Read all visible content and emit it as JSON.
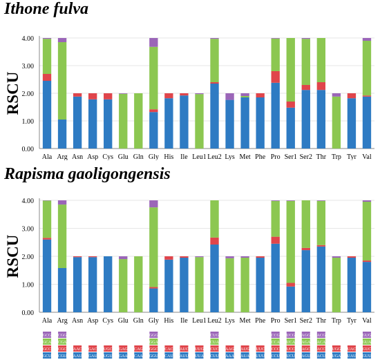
{
  "panel_titles": [
    "Ithone fulva",
    "Rapisma gaoligongensis"
  ],
  "colors": {
    "c1": "#2E7BC3",
    "c2": "#E0454B",
    "c3": "#8CC751",
    "c4": "#9B66B8",
    "axis": "#888888",
    "grid": "#e6e6e6"
  },
  "chart_data": [
    {
      "type": "bar",
      "stacked": true,
      "title": "Ithone fulva",
      "ylabel": "RSCU",
      "ylim": [
        0,
        4
      ],
      "yticks": [
        "0.00",
        "1.00",
        "2.00",
        "3.00",
        "4.00"
      ],
      "categories": [
        "Ala",
        "Arg",
        "Asn",
        "Asp",
        "Cys",
        "Glu",
        "Gln",
        "Gly",
        "His",
        "Ile",
        "Leu1",
        "Leu2",
        "Lys",
        "Met",
        "Phe",
        "Pro",
        "Ser1",
        "Ser2",
        "Thr",
        "Trp",
        "Tyr",
        "Val"
      ],
      "series": [
        {
          "values": [
            2.45,
            1.05,
            1.88,
            1.78,
            1.78,
            0.0,
            0.0,
            1.32,
            1.82,
            1.92,
            0.0,
            2.35,
            1.76,
            1.85,
            1.85,
            2.38,
            1.48,
            2.12,
            2.12,
            0.0,
            1.82,
            1.88
          ]
        },
        {
          "values": [
            0.25,
            0.0,
            0.12,
            0.22,
            0.22,
            0.0,
            0.0,
            0.1,
            0.18,
            0.08,
            0.0,
            0.05,
            0.0,
            0.0,
            0.15,
            0.42,
            0.22,
            0.18,
            0.28,
            0.0,
            0.18,
            0.04
          ]
        },
        {
          "values": [
            1.27,
            2.8,
            0.0,
            0.0,
            0.0,
            1.98,
            2.0,
            2.26,
            0.0,
            0.0,
            1.97,
            1.57,
            0.0,
            0.05,
            0.0,
            1.18,
            2.3,
            1.67,
            1.6,
            1.88,
            0.0,
            1.98
          ]
        },
        {
          "values": [
            0.03,
            0.15,
            0.0,
            0.0,
            0.0,
            0.02,
            0.0,
            0.32,
            0.0,
            0.0,
            0.03,
            0.03,
            0.24,
            0.1,
            0.0,
            0.02,
            0.0,
            0.03,
            0.0,
            0.12,
            0.0,
            0.1
          ]
        }
      ]
    },
    {
      "type": "bar",
      "stacked": true,
      "title": "Rapisma gaoligongensis",
      "ylabel": "RSCU",
      "ylim": [
        0,
        4
      ],
      "yticks": [
        "0.00",
        "1.00",
        "2.00",
        "3.00",
        "4.00"
      ],
      "categories": [
        "Ala",
        "Arg",
        "Asn",
        "Asp",
        "Cys",
        "Glu",
        "Gln",
        "Gly",
        "His",
        "Ile",
        "Leu1",
        "Leu2",
        "Lys",
        "Met",
        "Phe",
        "Pro",
        "Ser1",
        "Ser2",
        "Thr",
        "Trp",
        "Tyr",
        "Val"
      ],
      "series": [
        {
          "values": [
            2.6,
            1.58,
            1.97,
            1.97,
            2.0,
            0.0,
            0.0,
            0.85,
            1.88,
            1.95,
            0.0,
            2.42,
            0.0,
            0.0,
            1.95,
            2.45,
            0.92,
            2.22,
            2.35,
            0.0,
            1.95,
            1.8
          ]
        },
        {
          "values": [
            0.06,
            0.0,
            0.03,
            0.03,
            0.0,
            0.0,
            0.0,
            0.05,
            0.12,
            0.05,
            0.0,
            0.25,
            0.0,
            0.0,
            0.05,
            0.25,
            0.13,
            0.08,
            0.05,
            0.0,
            0.05,
            0.05
          ]
        },
        {
          "values": [
            1.33,
            2.27,
            0.0,
            0.0,
            0.0,
            1.9,
            2.0,
            2.85,
            0.0,
            0.0,
            1.97,
            1.33,
            1.93,
            1.95,
            0.0,
            1.28,
            2.93,
            1.7,
            1.58,
            1.95,
            0.0,
            2.1
          ]
        },
        {
          "values": [
            0.01,
            0.15,
            0.0,
            0.0,
            0.0,
            0.1,
            0.0,
            0.25,
            0.0,
            0.0,
            0.03,
            0.0,
            0.07,
            0.05,
            0.0,
            0.02,
            0.02,
            0.0,
            0.02,
            0.05,
            0.0,
            0.05
          ]
        }
      ]
    }
  ],
  "codon_legend": [
    [
      "GCU",
      "GCC",
      "GCA",
      "GCG"
    ],
    [
      "CGU",
      "CGC",
      "CGA",
      "CGG"
    ],
    [
      "AAU",
      "AAC"
    ],
    [
      "GAU",
      "GAC"
    ],
    [
      "UGU",
      "UGC"
    ],
    [
      "GAA",
      "GAG"
    ],
    [
      "CAA",
      "CAG"
    ],
    [
      "GGU",
      "GGC",
      "GGA",
      "GGG"
    ],
    [
      "CAU",
      "CAC"
    ],
    [
      "AUU",
      "AUC"
    ],
    [
      "UUA",
      "UUG"
    ],
    [
      "CUU",
      "CUC",
      "CUA",
      "CUG"
    ],
    [
      "AAA",
      "AAG"
    ],
    [
      "AUA",
      "AUG"
    ],
    [
      "UUU",
      "UUC"
    ],
    [
      "CCU",
      "CCC",
      "CCA",
      "CCG"
    ],
    [
      "UCU",
      "UCC",
      "UCA",
      "UCG"
    ],
    [
      "AGU",
      "AGC",
      "AGA",
      "AGG"
    ],
    [
      "ACU",
      "ACC",
      "ACA",
      "ACG"
    ],
    [
      "UGA",
      "UGG"
    ],
    [
      "UAU",
      "UAC"
    ],
    [
      "GUU",
      "GUC",
      "GUA",
      "GUG"
    ]
  ]
}
